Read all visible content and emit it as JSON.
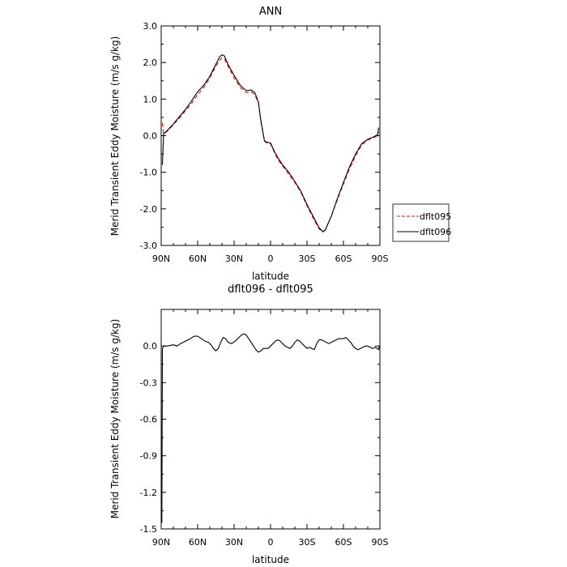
{
  "chart_data": [
    {
      "type": "line",
      "title": "ANN",
      "xlabel": "latitude",
      "ylabel": "Merid Transient Eddy Moisture (m/s g/kg)",
      "xticks": [
        {
          "value": 90,
          "label": "90N"
        },
        {
          "value": 60,
          "label": "60N"
        },
        {
          "value": 30,
          "label": "30N"
        },
        {
          "value": 0,
          "label": "0"
        },
        {
          "value": -30,
          "label": "30S"
        },
        {
          "value": -60,
          "label": "60S"
        },
        {
          "value": -90,
          "label": "90S"
        }
      ],
      "xlim": [
        90,
        -90
      ],
      "ylim": [
        -3.0,
        3.0
      ],
      "yticks": [
        {
          "value": 3.0,
          "label": "3.0"
        },
        {
          "value": 2.0,
          "label": "2.0"
        },
        {
          "value": 1.0,
          "label": "1.0"
        },
        {
          "value": 0.0,
          "label": "0.0"
        },
        {
          "value": -1.0,
          "label": "-1.0"
        },
        {
          "value": -2.0,
          "label": "-2.0"
        },
        {
          "value": -3.0,
          "label": "-3.0"
        }
      ],
      "legend_position": "right",
      "series": [
        {
          "name": "dflt095",
          "color": "#ff0000",
          "dashed": true,
          "x": [
            89,
            88,
            85,
            80,
            75,
            70,
            65,
            60,
            55,
            50,
            45,
            42,
            40,
            38,
            35,
            30,
            25,
            20,
            16,
            13,
            10,
            8,
            5,
            3,
            0,
            -3,
            -6,
            -10,
            -15,
            -20,
            -25,
            -30,
            -35,
            -40,
            -43,
            -45,
            -50,
            -55,
            -60,
            -65,
            -70,
            -75,
            -80,
            -85,
            -88,
            -89
          ],
          "y": [
            0.35,
            0.05,
            0.12,
            0.3,
            0.48,
            0.68,
            0.88,
            1.12,
            1.32,
            1.58,
            1.9,
            2.06,
            2.13,
            2.1,
            1.9,
            1.58,
            1.32,
            1.18,
            1.2,
            1.12,
            0.9,
            0.4,
            -0.15,
            -0.2,
            -0.22,
            -0.45,
            -0.65,
            -0.83,
            -1.05,
            -1.28,
            -1.55,
            -1.92,
            -2.25,
            -2.55,
            -2.63,
            -2.58,
            -2.2,
            -1.75,
            -1.32,
            -0.9,
            -0.55,
            -0.25,
            -0.12,
            -0.05,
            0.0,
            0.1
          ]
        },
        {
          "name": "dflt096",
          "color": "#000000",
          "dashed": false,
          "x": [
            89,
            88,
            85,
            80,
            75,
            70,
            65,
            60,
            55,
            50,
            45,
            42,
            40,
            38,
            35,
            30,
            25,
            20,
            16,
            13,
            10,
            8,
            5,
            3,
            0,
            -3,
            -6,
            -10,
            -15,
            -20,
            -25,
            -30,
            -35,
            -40,
            -43,
            -45,
            -50,
            -55,
            -60,
            -65,
            -70,
            -75,
            -80,
            -85,
            -88,
            -89
          ],
          "y": [
            -0.8,
            0.05,
            0.14,
            0.32,
            0.52,
            0.72,
            0.95,
            1.2,
            1.38,
            1.62,
            1.95,
            2.15,
            2.21,
            2.18,
            1.95,
            1.65,
            1.38,
            1.23,
            1.25,
            1.18,
            0.92,
            0.42,
            -0.14,
            -0.18,
            -0.2,
            -0.42,
            -0.6,
            -0.8,
            -1.0,
            -1.25,
            -1.52,
            -1.88,
            -2.2,
            -2.52,
            -2.62,
            -2.58,
            -2.2,
            -1.72,
            -1.28,
            -0.85,
            -0.5,
            -0.22,
            -0.1,
            -0.03,
            0.02,
            0.22
          ]
        }
      ]
    },
    {
      "type": "line",
      "title": "dflt096 - dflt095",
      "xlabel": "latitude",
      "ylabel": "Merid Transient Eddy Moisture (m/s g/kg)",
      "xticks": [
        {
          "value": 90,
          "label": "90N"
        },
        {
          "value": 60,
          "label": "60N"
        },
        {
          "value": 30,
          "label": "30N"
        },
        {
          "value": 0,
          "label": "0"
        },
        {
          "value": -30,
          "label": "30S"
        },
        {
          "value": -60,
          "label": "60S"
        },
        {
          "value": -90,
          "label": "90S"
        }
      ],
      "xlim": [
        90,
        -90
      ],
      "ylim": [
        -1.5,
        0.3
      ],
      "yticks": [
        {
          "value": 0.0,
          "label": "0.0"
        },
        {
          "value": -0.3,
          "label": "-0.3"
        },
        {
          "value": -0.6,
          "label": "-0.6"
        },
        {
          "value": -0.9,
          "label": "-0.9"
        },
        {
          "value": -1.2,
          "label": "-1.2"
        },
        {
          "value": -1.5,
          "label": "-1.5"
        }
      ],
      "series": [
        {
          "color": "#000000",
          "x": [
            89.5,
            89,
            88,
            85,
            80,
            77,
            74,
            70,
            66,
            63,
            60,
            57,
            54,
            51,
            49,
            47,
            45,
            43,
            41,
            39,
            37,
            35,
            32,
            29,
            26,
            24,
            22,
            20,
            18,
            16,
            14,
            12,
            10,
            8,
            6,
            4,
            2,
            0,
            -2,
            -4,
            -6,
            -8,
            -10,
            -12,
            -14,
            -16,
            -18,
            -20,
            -22,
            -24,
            -26,
            -28,
            -30,
            -32,
            -34,
            -36,
            -38,
            -40,
            -42,
            -44,
            -46,
            -48,
            -50,
            -52,
            -54,
            -56,
            -58,
            -60,
            -62,
            -64,
            -66,
            -68,
            -70,
            -72,
            -74,
            -76,
            -78,
            -80,
            -82,
            -84,
            -86,
            -88,
            -89,
            -89.5
          ],
          "y": [
            -1.45,
            -0.02,
            0.0,
            0.0,
            0.01,
            0.0,
            0.02,
            0.04,
            0.06,
            0.08,
            0.08,
            0.06,
            0.04,
            0.03,
            0.01,
            -0.02,
            -0.04,
            -0.02,
            0.03,
            0.07,
            0.06,
            0.03,
            0.02,
            0.04,
            0.07,
            0.09,
            0.1,
            0.09,
            0.06,
            0.03,
            0.0,
            -0.03,
            -0.05,
            -0.04,
            -0.02,
            -0.02,
            -0.02,
            0.0,
            0.02,
            0.04,
            0.05,
            0.04,
            0.02,
            0.0,
            -0.01,
            -0.02,
            0.0,
            0.03,
            0.05,
            0.04,
            0.02,
            0.0,
            -0.02,
            -0.01,
            -0.02,
            -0.03,
            0.02,
            0.05,
            0.05,
            0.04,
            0.03,
            0.02,
            0.03,
            0.04,
            0.05,
            0.06,
            0.06,
            0.06,
            0.07,
            0.05,
            0.03,
            0.0,
            -0.02,
            -0.03,
            -0.02,
            -0.01,
            0.0,
            0.0,
            -0.01,
            -0.02,
            -0.01,
            -0.02,
            -0.03,
            0.0
          ]
        }
      ]
    }
  ]
}
